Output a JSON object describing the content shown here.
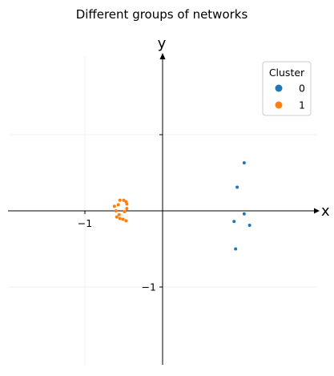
{
  "chart_data": {
    "type": "scatter",
    "title": "Different groups of networks",
    "xlabel": "x",
    "ylabel": "y",
    "xlim": [
      -2.0,
      2.0
    ],
    "ylim": [
      -2.0,
      2.0
    ],
    "x_ticks": [
      -1
    ],
    "x_tick_labels": [
      "−1"
    ],
    "y_ticks": [
      -1,
      1
    ],
    "y_tick_labels": [
      "−1",
      ""
    ],
    "grid": true,
    "legend": {
      "title": "Cluster",
      "placement": "top-right"
    },
    "series": [
      {
        "name": "0",
        "color": "#1f77b4",
        "points": [
          [
            1.05,
            0.63
          ],
          [
            0.96,
            0.31
          ],
          [
            1.05,
            -0.04
          ],
          [
            0.92,
            -0.14
          ],
          [
            1.12,
            -0.19
          ],
          [
            0.94,
            -0.5
          ]
        ]
      },
      {
        "name": "1",
        "color": "#ff7f0e",
        "points": [
          [
            -0.6,
            0.0
          ],
          [
            -0.57,
            0.08
          ],
          [
            -0.62,
            0.06
          ],
          [
            -0.55,
            0.14
          ],
          [
            -0.5,
            0.14
          ],
          [
            -0.47,
            0.12
          ],
          [
            -0.46,
            0.09
          ],
          [
            -0.46,
            0.03
          ],
          [
            -0.49,
            -0.01
          ],
          [
            -0.56,
            -0.05
          ],
          [
            -0.59,
            -0.08
          ],
          [
            -0.55,
            -0.1
          ],
          [
            -0.51,
            -0.11
          ],
          [
            -0.47,
            -0.13
          ]
        ]
      }
    ]
  }
}
